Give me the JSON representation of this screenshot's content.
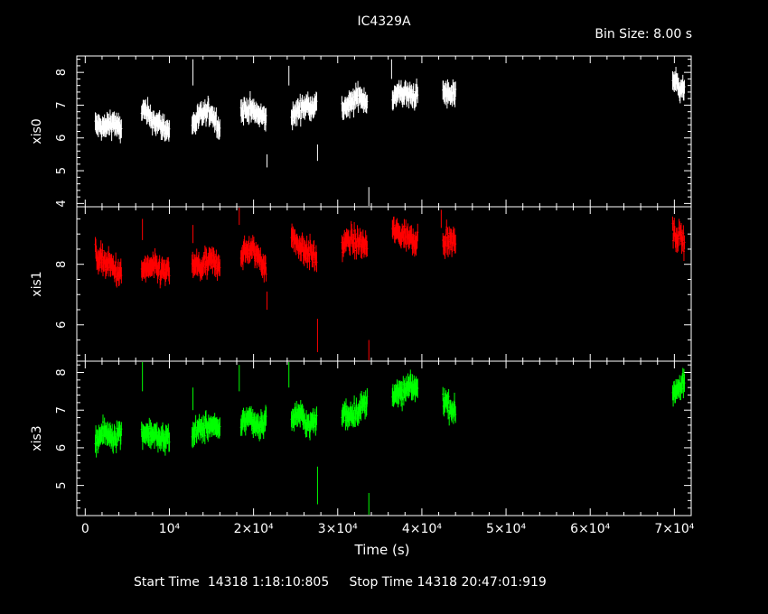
{
  "title": "IC4329A",
  "bin_size_label": "Bin Size:  8.00  s",
  "footer": {
    "start_label": "Start Time",
    "start_value": "14318   1:18:10:805",
    "stop_label": "Stop Time",
    "stop_value": "14318  20:47:01:919"
  },
  "chart_data": {
    "type": "scatter",
    "xlabel": "Time (s)",
    "xlim": [
      -1000,
      72000
    ],
    "x_ticks": [
      {
        "value": 0,
        "label": "0"
      },
      {
        "value": 10000,
        "label": "10⁴"
      },
      {
        "value": 20000,
        "label": "2×10⁴"
      },
      {
        "value": 30000,
        "label": "3×10⁴"
      },
      {
        "value": 40000,
        "label": "4×10⁴"
      },
      {
        "value": 50000,
        "label": "5×10⁴"
      },
      {
        "value": 60000,
        "label": "6×10⁴"
      },
      {
        "value": 70000,
        "label": "7×10⁴"
      }
    ],
    "x_minor_step": 2000,
    "panels": [
      {
        "name": "xis0",
        "ylabel": "xis0",
        "color": "#ffffff",
        "ylim": [
          3.9,
          8.5
        ],
        "y_ticks": [
          4,
          5,
          6,
          7,
          8
        ],
        "y_minor_step": 0.2,
        "segments": [
          {
            "x0": 1200,
            "x1": 4300,
            "level": [
              6.4,
              6.3,
              6.5,
              6.2
            ]
          },
          {
            "x0": 6700,
            "x1": 10000,
            "level": [
              6.9,
              6.6,
              6.4,
              6.2
            ]
          },
          {
            "x0": 12700,
            "x1": 16000,
            "level": [
              6.4,
              6.7,
              6.8,
              6.3
            ]
          },
          {
            "x0": 18500,
            "x1": 21500,
            "level": [
              6.8,
              6.9,
              6.7,
              6.6
            ]
          },
          {
            "x0": 24500,
            "x1": 27500,
            "level": [
              6.6,
              6.9,
              7.0,
              7.0
            ]
          },
          {
            "x0": 30500,
            "x1": 33500,
            "level": [
              6.9,
              7.0,
              7.3,
              7.1
            ]
          },
          {
            "x0": 36500,
            "x1": 39500,
            "level": [
              7.2,
              7.4,
              7.3,
              7.3
            ]
          },
          {
            "x0": 42500,
            "x1": 44000,
            "level": [
              7.4,
              7.3,
              7.4
            ]
          },
          {
            "x0": 69800,
            "x1": 71200,
            "level": [
              7.8,
              7.6,
              7.5
            ]
          }
        ],
        "noise": 0.22,
        "outliers": [
          {
            "x": 12800,
            "y": 8.4,
            "y_low": 7.6
          },
          {
            "x": 21600,
            "y": 5.5,
            "y_low": 5.1
          },
          {
            "x": 24200,
            "y": 8.2,
            "y_low": 7.6
          },
          {
            "x": 27600,
            "y": 5.8,
            "y_low": 5.3
          },
          {
            "x": 33700,
            "y": 4.5,
            "y_low": 3.9
          },
          {
            "x": 36400,
            "y": 8.4,
            "y_low": 7.8
          }
        ]
      },
      {
        "name": "xis1",
        "ylabel": "xis1",
        "color": "#ff0000",
        "ylim": [
          4.8,
          9.9
        ],
        "y_ticks": [
          6,
          8
        ],
        "y_minor_step": 0.5,
        "segments": [
          {
            "x0": 1200,
            "x1": 4300,
            "level": [
              8.3,
              8.1,
              7.9,
              7.6
            ]
          },
          {
            "x0": 6700,
            "x1": 10000,
            "level": [
              7.8,
              7.9,
              7.8,
              7.7
            ]
          },
          {
            "x0": 12700,
            "x1": 16000,
            "level": [
              8.0,
              7.9,
              8.1,
              8.0
            ]
          },
          {
            "x0": 18500,
            "x1": 21500,
            "level": [
              8.3,
              8.5,
              8.3,
              7.9
            ]
          },
          {
            "x0": 24500,
            "x1": 27500,
            "level": [
              8.9,
              8.6,
              8.4,
              8.2
            ]
          },
          {
            "x0": 30500,
            "x1": 33500,
            "level": [
              8.6,
              8.8,
              8.7,
              8.6
            ]
          },
          {
            "x0": 36500,
            "x1": 39500,
            "level": [
              9.1,
              9.0,
              8.9,
              8.8
            ]
          },
          {
            "x0": 42500,
            "x1": 44000,
            "level": [
              8.9,
              8.7,
              8.8
            ]
          },
          {
            "x0": 69800,
            "x1": 71200,
            "level": [
              9.0,
              8.9,
              8.8
            ]
          }
        ],
        "noise": 0.3,
        "outliers": [
          {
            "x": 6800,
            "y": 9.5,
            "y_low": 8.8
          },
          {
            "x": 12800,
            "y": 9.3,
            "y_low": 8.7
          },
          {
            "x": 18300,
            "y": 9.9,
            "y_low": 9.3
          },
          {
            "x": 21600,
            "y": 7.1,
            "y_low": 6.5
          },
          {
            "x": 27600,
            "y": 6.2,
            "y_low": 5.1
          },
          {
            "x": 33700,
            "y": 5.5,
            "y_low": 4.8
          },
          {
            "x": 42300,
            "y": 9.8,
            "y_low": 9.2
          }
        ]
      },
      {
        "name": "xis3",
        "ylabel": "xis3",
        "color": "#00ff00",
        "ylim": [
          4.2,
          8.3
        ],
        "y_ticks": [
          5,
          6,
          7,
          8
        ],
        "y_minor_step": 0.2,
        "segments": [
          {
            "x0": 1200,
            "x1": 4300,
            "level": [
              6.2,
              6.4,
              6.3,
              6.4
            ]
          },
          {
            "x0": 6700,
            "x1": 10000,
            "level": [
              6.4,
              6.4,
              6.2,
              6.3
            ]
          },
          {
            "x0": 12700,
            "x1": 16000,
            "level": [
              6.4,
              6.5,
              6.6,
              6.4
            ]
          },
          {
            "x0": 18500,
            "x1": 21500,
            "level": [
              6.7,
              6.8,
              6.6,
              6.7
            ]
          },
          {
            "x0": 24500,
            "x1": 27500,
            "level": [
              6.8,
              6.9,
              6.6,
              6.7
            ]
          },
          {
            "x0": 30500,
            "x1": 33500,
            "level": [
              6.9,
              6.9,
              7.0,
              7.2
            ]
          },
          {
            "x0": 36500,
            "x1": 39500,
            "level": [
              7.5,
              7.4,
              7.6,
              7.6
            ]
          },
          {
            "x0": 42500,
            "x1": 44000,
            "level": [
              7.3,
              7.1,
              6.9
            ]
          },
          {
            "x0": 69800,
            "x1": 71200,
            "level": [
              7.5,
              7.6,
              7.7
            ]
          }
        ],
        "noise": 0.22,
        "outliers": [
          {
            "x": 6800,
            "y": 8.3,
            "y_low": 7.5
          },
          {
            "x": 12800,
            "y": 7.6,
            "y_low": 7.0
          },
          {
            "x": 18300,
            "y": 8.2,
            "y_low": 7.5
          },
          {
            "x": 24200,
            "y": 8.3,
            "y_low": 7.6
          },
          {
            "x": 27600,
            "y": 5.5,
            "y_low": 4.5
          },
          {
            "x": 33700,
            "y": 4.8,
            "y_low": 4.2
          }
        ]
      }
    ]
  }
}
